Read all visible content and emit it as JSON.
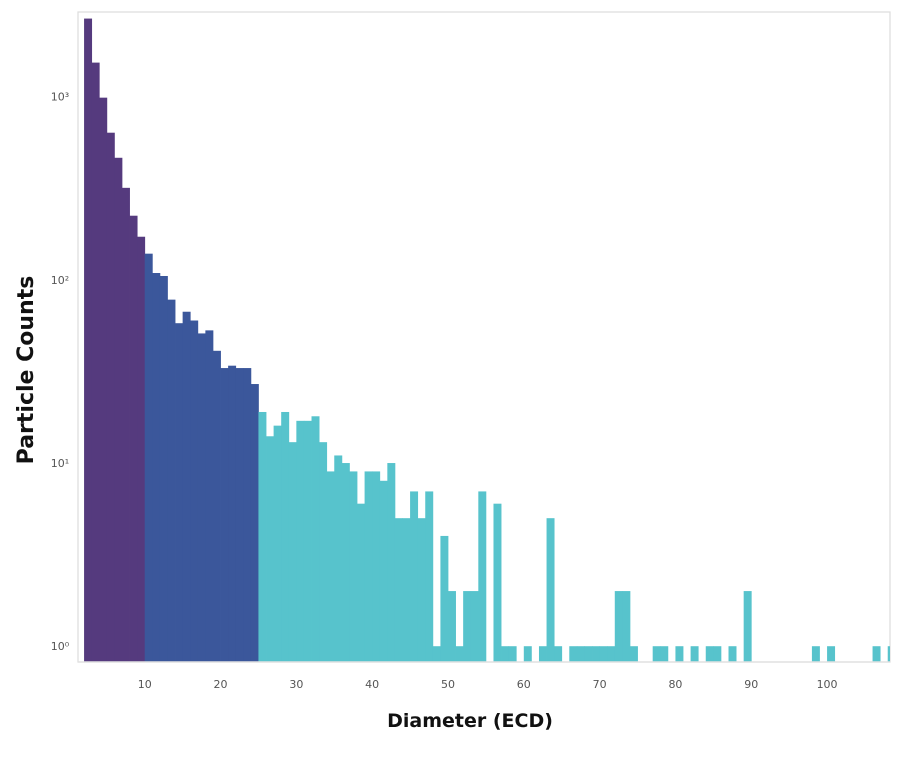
{
  "chart_data": {
    "type": "bar",
    "subtype": "histogram",
    "title": "",
    "xlabel": "Diameter (ECD)",
    "ylabel": "Particle Counts",
    "xlim": [
      1.2,
      108.3
    ],
    "ylim": [
      0.82,
      2900
    ],
    "yscale": "log",
    "bin_width": 1,
    "grid": false,
    "x_ticks": [
      10,
      20,
      30,
      40,
      50,
      60,
      70,
      80,
      90,
      100
    ],
    "x_tick_labels": [
      "10",
      "20",
      "30",
      "40",
      "50",
      "60",
      "70",
      "80",
      "90",
      "100"
    ],
    "y_ticks": [
      1,
      10,
      100,
      1000
    ],
    "y_tick_labels": [
      "10⁰",
      "10¹",
      "10²",
      "10³"
    ],
    "series": [
      {
        "color": "#553a7e",
        "x": [
          2,
          3,
          4,
          5,
          6,
          7,
          8,
          9
        ],
        "values": [
          2670,
          1535,
          988,
          636,
          464,
          318,
          224,
          172
        ]
      },
      {
        "color": "#3b579b",
        "x": [
          10,
          11,
          12,
          13,
          14,
          15,
          16,
          17,
          18,
          19,
          20,
          21,
          22,
          23,
          24
        ],
        "values": [
          139,
          109,
          105,
          78,
          58,
          67,
          60,
          51,
          53,
          41,
          33,
          34,
          33,
          33,
          27
        ]
      },
      {
        "color": "#57c3cc",
        "x": [
          25,
          26,
          27,
          28,
          29,
          30,
          31,
          32,
          33,
          34,
          35,
          36,
          37,
          38,
          39,
          40,
          41,
          42,
          43,
          44,
          45,
          46,
          47,
          48,
          49,
          50,
          51,
          52,
          53,
          54,
          56,
          57,
          58,
          60,
          62,
          63,
          64,
          66,
          67,
          68,
          69,
          70,
          71,
          72,
          73,
          74,
          77,
          78,
          80,
          82,
          84,
          85,
          87,
          89,
          98,
          100,
          106,
          108
        ],
        "values": [
          19,
          14,
          16,
          19,
          13,
          17,
          17,
          18,
          13,
          9,
          11,
          10,
          9,
          6,
          9,
          9,
          8,
          10,
          5,
          5,
          7,
          5,
          7,
          1,
          4,
          2,
          1,
          2,
          2,
          7,
          6,
          1,
          1,
          1,
          1,
          5,
          1,
          1,
          1,
          1,
          1,
          1,
          1,
          2,
          2,
          1,
          1,
          1,
          1,
          1,
          1,
          1,
          1,
          2,
          1,
          1,
          1,
          1
        ]
      }
    ]
  }
}
